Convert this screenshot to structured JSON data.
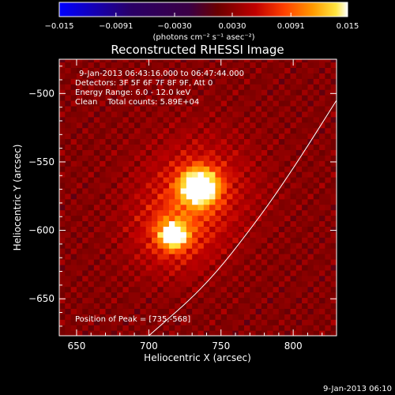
{
  "chart_data": {
    "type": "heatmap",
    "title": "Reconstructed RHESSI Image",
    "xlabel": "Heliocentric X (arcsec)",
    "ylabel": "Heliocentric Y (arcsec)",
    "xlim": [
      638,
      830
    ],
    "ylim": [
      -677,
      -475
    ],
    "xticks": [
      650,
      700,
      750,
      800
    ],
    "yticks": [
      -500,
      -550,
      -600,
      -650
    ],
    "info_lines": [
      "9-Jan-2013 06:43:16.000 to 06:47:44.000",
      "Detectors: 3F 5F 6F 7F 8F 9F, Att 0",
      "Energy Range: 6.0 - 12.0 keV",
      "Clean    Total counts: 5.89E+04"
    ],
    "peak_label": "Position of Peak = [735,-568]",
    "peak_position": [
      735,
      -568
    ],
    "sources": [
      {
        "x": 735,
        "y": -568,
        "sigma": 9,
        "amplitude": 0.015
      },
      {
        "x": 717,
        "y": -603,
        "sigma": 7,
        "amplitude": 0.0115
      }
    ],
    "limb_curve": [
      [
        700,
        -677
      ],
      [
        740,
        -640
      ],
      [
        775,
        -593
      ],
      [
        800,
        -555
      ],
      [
        830,
        -505
      ]
    ],
    "colorbar": {
      "min": -0.015,
      "max": 0.015,
      "tick_labels": [
        "-0.015",
        "-0.0091",
        "-0.0030",
        "0.0030",
        "0.0091",
        "0.015"
      ],
      "tick_values": [
        -0.015,
        -0.0091,
        -0.003,
        0.003,
        0.0091,
        0.015
      ],
      "unit_label": "(photons cm⁻² s⁻¹ asec⁻²)",
      "colors": [
        "#0000ff",
        "#2a0066",
        "#3a0045",
        "#6b0000",
        "#c00000",
        "#ff4000",
        "#ff9a00",
        "#ffe640",
        "#ffffff"
      ]
    },
    "timestamp": "9-Jan-2013 06:10"
  }
}
